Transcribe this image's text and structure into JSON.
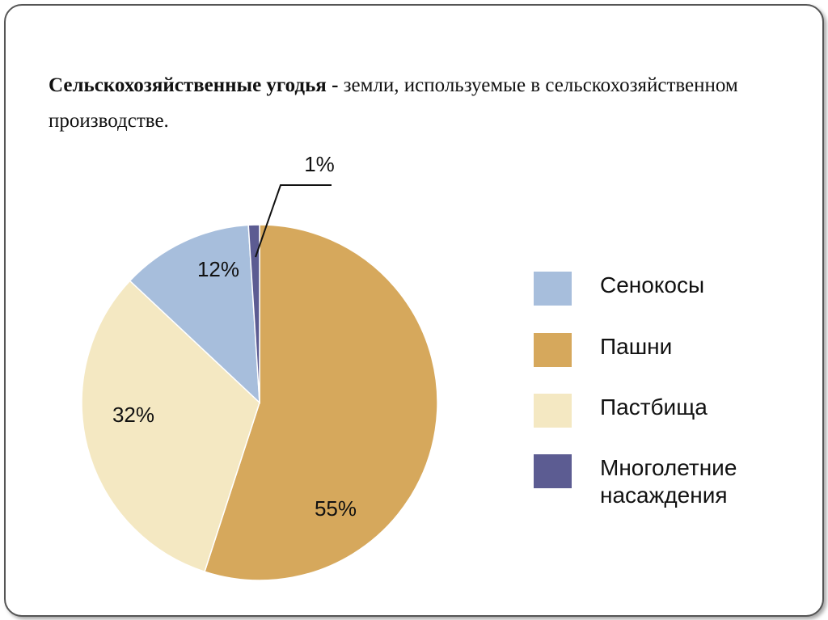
{
  "title": {
    "bold": "Сельскохозяйственные угодья -",
    "rest": " земли, используемые в сельскохозяйственном производстве."
  },
  "chart_data": {
    "type": "pie",
    "title": "Сельскохозяйственные угодья",
    "start_angle_deg": 0,
    "direction": "clockwise",
    "slices": [
      {
        "name": "Пашни",
        "value": 55,
        "label": "55%",
        "color": "#d6a85c"
      },
      {
        "name": "Пастбища",
        "value": 32,
        "label": "32%",
        "color": "#f4e8c2"
      },
      {
        "name": "Сенокосы",
        "value": 12,
        "label": "12%",
        "color": "#a7bedc"
      },
      {
        "name": "Многолетние насаждения",
        "value": 1,
        "label": "1%",
        "color": "#5c5c92"
      }
    ],
    "legend": [
      {
        "label": "Сенокосы",
        "color": "#a7bedc"
      },
      {
        "label": "Пашни",
        "color": "#d6a85c"
      },
      {
        "label": "Пастбища",
        "color": "#f4e8c2"
      },
      {
        "label": "Многолетние насаждения",
        "color": "#5c5c92"
      }
    ],
    "legend_placement": "right"
  }
}
